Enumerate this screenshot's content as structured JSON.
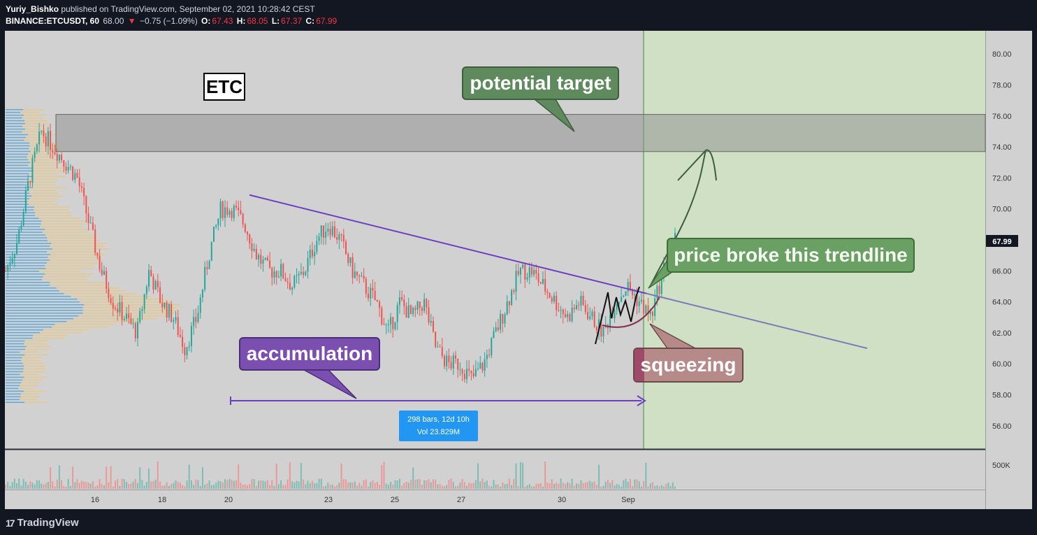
{
  "header": {
    "author": "Yuriy_Bishko",
    "published": "published on TradingView.com, September 02, 2021 10:28:42 CEST",
    "symbol": "BINANCE:ETCUSDT, 60",
    "last": "68.00",
    "change": "−0.75 (−1.09%)",
    "o_label": "O:",
    "o": "67.43",
    "h_label": "H:",
    "h": "68.05",
    "l_label": "L:",
    "l": "67.37",
    "c_label": "C:",
    "c": "67.99"
  },
  "annotations": {
    "etc": "ETC",
    "potential_target": "potential target",
    "price_broke": "price broke this trendline",
    "accumulation": "accumulation",
    "squeezing": "squeezing"
  },
  "measure": {
    "line1": "298 bars, 12d 10h",
    "line2": "Vol 23.829M"
  },
  "footer": {
    "brand": "TradingView"
  },
  "colors": {
    "background": "#131722",
    "plot_bg": "#d1d1d1",
    "up": "#26a69a",
    "down": "#ef5350",
    "trendline": "#6a3fc0",
    "target_zone": "#a8a8a8",
    "future_zone": "#cfe0c4"
  },
  "chart_data": {
    "type": "candlestick",
    "y_ticks": [
      "80.00",
      "78.00",
      "76.00",
      "74.00",
      "72.00",
      "70.00",
      "68.00",
      "66.00",
      "64.00",
      "62.00",
      "60.00",
      "58.00",
      "56.00"
    ],
    "ylim": [
      54.5,
      81.5
    ],
    "x_ticks": [
      "16",
      "18",
      "20",
      "23",
      "25",
      "27",
      "30",
      "Sep"
    ],
    "last_price_label": "67.99",
    "volume_tick": "500K",
    "price_path": [
      66,
      68,
      72,
      75,
      74,
      73,
      72,
      69,
      66,
      64,
      63,
      62,
      66,
      64,
      63,
      61,
      63,
      67,
      70,
      70,
      69,
      67,
      66,
      66,
      65,
      66,
      68,
      69,
      68,
      66,
      65,
      64,
      62,
      64,
      63,
      64,
      61,
      60,
      60,
      59,
      60,
      62,
      64,
      66,
      66,
      65,
      64,
      63,
      64,
      63,
      62,
      64,
      65,
      64,
      63,
      66,
      68
    ],
    "target_zone": [
      73.7,
      76.1
    ],
    "trendline": {
      "start": [
        70.9,
        "20"
      ],
      "end": [
        61.0,
        "after Sep"
      ]
    }
  }
}
